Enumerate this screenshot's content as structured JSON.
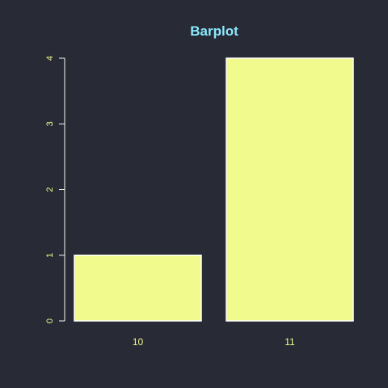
{
  "chart_data": {
    "type": "bar",
    "title": "Barplot",
    "xlabel": "",
    "ylabel": "",
    "categories": [
      "10",
      "11"
    ],
    "values": [
      1,
      4
    ],
    "ylim": [
      0,
      4
    ],
    "yticks": [
      "0",
      "1",
      "2",
      "3",
      "4"
    ],
    "grid": false,
    "legend": "none"
  },
  "colors": {
    "background": "#282a36",
    "title": "#8be9fd",
    "axis": "#f8f8f2",
    "tick_label": "#f1fa8c",
    "bar_fill": "#f1fa8c",
    "bar_stroke": "#ffffff"
  }
}
